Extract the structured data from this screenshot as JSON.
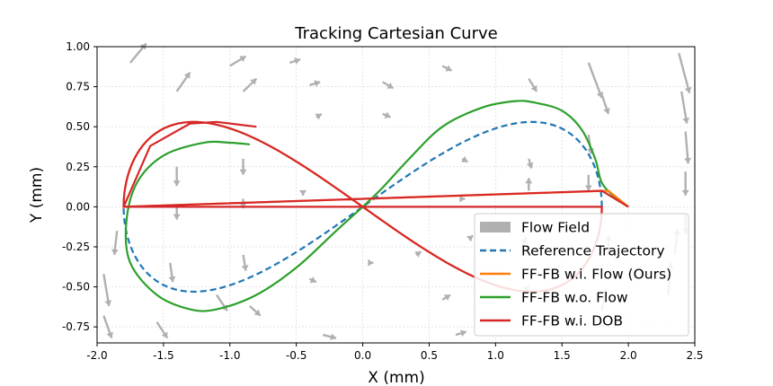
{
  "chart_data": {
    "type": "line",
    "title": "Tracking Cartesian Curve",
    "xlabel": "X (mm)",
    "ylabel": "Y (mm)",
    "xlim": [
      -2.0,
      2.5
    ],
    "ylim": [
      -0.85,
      1.0
    ],
    "grid": true,
    "legend_position": "lower-right",
    "x_ticks": [
      "-2.0",
      "-1.5",
      "-1.0",
      "-0.5",
      "0.0",
      "0.5",
      "1.0",
      "1.5",
      "2.0",
      "2.5"
    ],
    "y_ticks": [
      "1.00",
      "0.75",
      "0.50",
      "0.25",
      "0.00",
      "-0.25",
      "-0.50",
      "-0.75"
    ],
    "x_tick_values": [
      -2.0,
      -1.5,
      -1.0,
      -0.5,
      0.0,
      0.5,
      1.0,
      1.5,
      2.0,
      2.5
    ],
    "y_tick_values": [
      1.0,
      0.75,
      0.5,
      0.25,
      0.0,
      -0.25,
      -0.5,
      -0.75
    ],
    "series": [
      {
        "name": "Flow Field",
        "color": "#b0b0b0",
        "style": "quiver",
        "arrows": [
          {
            "x": -1.75,
            "y": 0.9,
            "dx": 0.12,
            "dy": 0.12
          },
          {
            "x": -1.4,
            "y": 0.72,
            "dx": 0.1,
            "dy": 0.12
          },
          {
            "x": -1.0,
            "y": 0.88,
            "dx": 0.12,
            "dy": 0.06
          },
          {
            "x": -0.9,
            "y": 0.72,
            "dx": 0.1,
            "dy": 0.08
          },
          {
            "x": -0.55,
            "y": 0.9,
            "dx": 0.08,
            "dy": 0.02
          },
          {
            "x": -0.4,
            "y": 0.76,
            "dx": 0.08,
            "dy": 0.02
          },
          {
            "x": -0.35,
            "y": 0.56,
            "dx": 0.04,
            "dy": 0.02
          },
          {
            "x": 0.15,
            "y": 0.78,
            "dx": 0.08,
            "dy": -0.04
          },
          {
            "x": 0.15,
            "y": 0.58,
            "dx": 0.06,
            "dy": -0.02
          },
          {
            "x": 0.6,
            "y": 0.88,
            "dx": 0.07,
            "dy": -0.03
          },
          {
            "x": 1.25,
            "y": 0.8,
            "dx": 0.06,
            "dy": -0.08
          },
          {
            "x": 1.7,
            "y": 0.9,
            "dx": 0.1,
            "dy": -0.22
          },
          {
            "x": 1.8,
            "y": 0.7,
            "dx": 0.05,
            "dy": -0.12
          },
          {
            "x": 2.38,
            "y": 0.96,
            "dx": 0.08,
            "dy": -0.25
          },
          {
            "x": 2.4,
            "y": 0.72,
            "dx": 0.04,
            "dy": -0.2
          },
          {
            "x": 2.43,
            "y": 0.47,
            "dx": 0.02,
            "dy": -0.2
          },
          {
            "x": 2.43,
            "y": 0.22,
            "dx": 0.0,
            "dy": -0.15
          },
          {
            "x": 2.43,
            "y": -0.05,
            "dx": 0.0,
            "dy": -0.12
          },
          {
            "x": -1.85,
            "y": -0.15,
            "dx": -0.02,
            "dy": -0.15
          },
          {
            "x": -1.95,
            "y": -0.42,
            "dx": 0.04,
            "dy": -0.2
          },
          {
            "x": -1.95,
            "y": -0.68,
            "dx": 0.06,
            "dy": -0.14
          },
          {
            "x": -1.55,
            "y": -0.72,
            "dx": 0.08,
            "dy": -0.1
          },
          {
            "x": -1.4,
            "y": 0.25,
            "dx": 0.0,
            "dy": -0.12
          },
          {
            "x": -1.4,
            "y": 0.0,
            "dx": 0.0,
            "dy": -0.08
          },
          {
            "x": -1.45,
            "y": -0.35,
            "dx": 0.02,
            "dy": -0.12
          },
          {
            "x": -1.1,
            "y": -0.55,
            "dx": 0.08,
            "dy": -0.1
          },
          {
            "x": -0.9,
            "y": 0.3,
            "dx": 0.0,
            "dy": -0.1
          },
          {
            "x": -0.9,
            "y": 0.05,
            "dx": 0.0,
            "dy": -0.06
          },
          {
            "x": -0.9,
            "y": -0.3,
            "dx": 0.02,
            "dy": -0.1
          },
          {
            "x": -0.85,
            "y": -0.62,
            "dx": 0.08,
            "dy": -0.06
          },
          {
            "x": -0.45,
            "y": 0.1,
            "dx": 0.0,
            "dy": -0.03
          },
          {
            "x": -0.4,
            "y": -0.45,
            "dx": 0.05,
            "dy": -0.02
          },
          {
            "x": -0.3,
            "y": -0.8,
            "dx": 0.1,
            "dy": -0.02
          },
          {
            "x": 0.05,
            "y": -0.35,
            "dx": 0.03,
            "dy": 0.0
          },
          {
            "x": 0.4,
            "y": -0.3,
            "dx": 0.04,
            "dy": 0.02
          },
          {
            "x": 0.6,
            "y": -0.58,
            "dx": 0.06,
            "dy": 0.03
          },
          {
            "x": 0.7,
            "y": -0.8,
            "dx": 0.08,
            "dy": 0.02
          },
          {
            "x": 0.75,
            "y": 0.3,
            "dx": 0.04,
            "dy": -0.02
          },
          {
            "x": 0.75,
            "y": 0.05,
            "dx": 0.02,
            "dy": 0.0
          },
          {
            "x": 0.8,
            "y": -0.2,
            "dx": 0.03,
            "dy": 0.02
          },
          {
            "x": 1.2,
            "y": -0.25,
            "dx": 0.03,
            "dy": 0.06
          },
          {
            "x": 1.2,
            "y": -0.55,
            "dx": 0.05,
            "dy": 0.06
          },
          {
            "x": 1.25,
            "y": 0.1,
            "dx": 0.0,
            "dy": 0.08
          },
          {
            "x": 1.25,
            "y": 0.3,
            "dx": 0.02,
            "dy": -0.06
          },
          {
            "x": 1.7,
            "y": 0.45,
            "dx": 0.02,
            "dy": -0.12
          },
          {
            "x": 1.7,
            "y": 0.2,
            "dx": 0.0,
            "dy": -0.1
          },
          {
            "x": 1.85,
            "y": -0.3,
            "dx": 0.0,
            "dy": 0.12
          },
          {
            "x": 1.8,
            "y": -0.65,
            "dx": 0.03,
            "dy": 0.14
          },
          {
            "x": 2.3,
            "y": -0.55,
            "dx": 0.02,
            "dy": 0.2
          },
          {
            "x": 2.35,
            "y": -0.3,
            "dx": 0.02,
            "dy": 0.16
          }
        ]
      },
      {
        "name": "Reference Trajectory",
        "color": "#1f77b4",
        "style": "dashed",
        "shape": "lemniscate",
        "amplitude_x": 1.8,
        "amplitude_y": 0.53,
        "t_range": [
          0.0,
          3.1416
        ]
      },
      {
        "name": "FF-FB w.i. Flow (Ours)",
        "color": "#ff7f0e",
        "style": "solid",
        "shape": "lemniscate",
        "amplitude_x": 1.8,
        "amplitude_y": 0.53,
        "t_range": [
          3.1416,
          6.2832
        ],
        "start_point": [
          2.0,
          0.0
        ],
        "join_point": [
          1.85,
          0.1
        ]
      },
      {
        "name": "FF-FB w.o. Flow",
        "color": "#2ca02c",
        "style": "solid",
        "points": [
          [
            2.0,
            0.0
          ],
          [
            1.9,
            0.06
          ],
          [
            1.8,
            0.15
          ],
          [
            1.75,
            0.3
          ],
          [
            1.65,
            0.48
          ],
          [
            1.5,
            0.6
          ],
          [
            1.3,
            0.65
          ],
          [
            1.15,
            0.66
          ],
          [
            0.9,
            0.62
          ],
          [
            0.6,
            0.5
          ],
          [
            0.35,
            0.3
          ],
          [
            0.15,
            0.12
          ],
          [
            0.0,
            0.0
          ],
          [
            -0.2,
            -0.15
          ],
          [
            -0.5,
            -0.38
          ],
          [
            -0.8,
            -0.55
          ],
          [
            -1.1,
            -0.64
          ],
          [
            -1.3,
            -0.64
          ],
          [
            -1.55,
            -0.55
          ],
          [
            -1.75,
            -0.35
          ],
          [
            -1.78,
            -0.1
          ],
          [
            -1.7,
            0.15
          ],
          [
            -1.5,
            0.32
          ],
          [
            -1.2,
            0.4
          ],
          [
            -1.0,
            0.4
          ],
          [
            -0.85,
            0.39
          ]
        ]
      },
      {
        "name": "FF-FB w.i. DOB",
        "color": "#d62728",
        "style": "solid",
        "shape": "lemniscate",
        "amplitude_x": 1.8,
        "amplitude_y": 0.53,
        "t_range": [
          3.1416,
          6.2832
        ],
        "start_point": [
          2.0,
          0.0
        ],
        "join_point": [
          1.8,
          0.1
        ],
        "tail_points": [
          [
            -1.8,
            0.0
          ],
          [
            -1.6,
            0.38
          ],
          [
            -1.3,
            0.52
          ],
          [
            -1.1,
            0.53
          ],
          [
            -0.8,
            0.5
          ]
        ]
      }
    ]
  }
}
